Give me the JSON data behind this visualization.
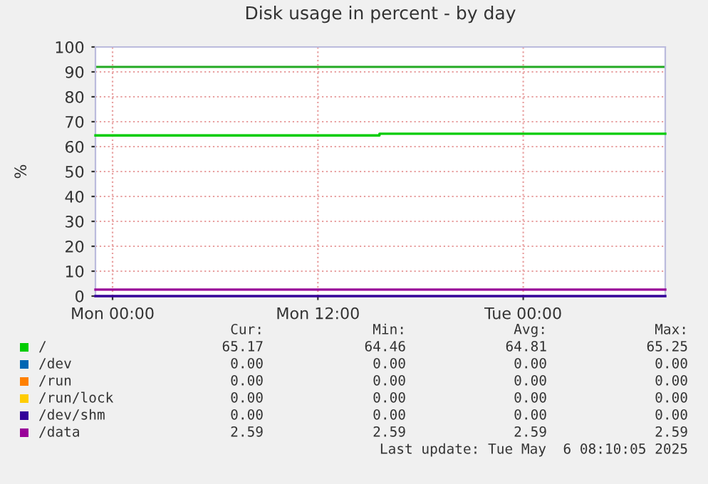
{
  "chart_data": {
    "type": "step",
    "title": "Disk usage in percent - by day",
    "ylabel": "%",
    "xlim": [
      "2025-05-04T23:00",
      "2025-05-06T08:18"
    ],
    "xticks": [
      {
        "value": "2025-05-05T00:00",
        "label": "Mon 00:00"
      },
      {
        "value": "2025-05-05T12:00",
        "label": "Mon 12:00"
      },
      {
        "value": "2025-05-06T00:00",
        "label": "Tue 00:00"
      }
    ],
    "ylim": [
      0,
      100
    ],
    "yticks": [
      0,
      10,
      20,
      30,
      40,
      50,
      60,
      70,
      80,
      90,
      100
    ],
    "grid": true,
    "legend": "bottom",
    "series": [
      {
        "name": "/",
        "color": "#00cc00",
        "x": [
          "2025-05-04T23:00",
          "2025-05-05T15:36",
          "2025-05-06T08:18"
        ],
        "values": [
          64.5,
          65.2,
          65.2
        ]
      },
      {
        "name": "/dev",
        "color": "#0066b3"
      },
      {
        "name": "/run",
        "color": "#ff8000"
      },
      {
        "name": "/run/lock",
        "color": "#ffcc00"
      },
      {
        "name": "/dev/shm",
        "color": "#330099",
        "x": [
          "2025-05-04T23:00",
          "2025-05-06T08:18"
        ],
        "values": [
          0,
          0
        ]
      },
      {
        "name": "/data",
        "color": "#990099",
        "x": [
          "2025-05-04T23:00",
          "2025-05-06T08:18"
        ],
        "values": [
          2.6,
          2.6
        ]
      }
    ],
    "ref_lines": [
      {
        "axis": "y",
        "value": 92,
        "color": "#22aa22"
      }
    ],
    "annotations": [
      "Cur:",
      "Min:",
      "Avg:",
      "Max:",
      "65.17",
      "64.46",
      "64.81",
      "65.25",
      "0.00",
      "0.00",
      "0.00",
      "0.00",
      "0.00",
      "0.00",
      "0.00",
      "0.00",
      "0.00",
      "0.00",
      "0.00",
      "0.00",
      "0.00",
      "0.00",
      "0.00",
      "0.00",
      "2.59",
      "2.59",
      "2.59",
      "2.59",
      "Last update: Tue May  6 08:10:05 2025"
    ]
  }
}
